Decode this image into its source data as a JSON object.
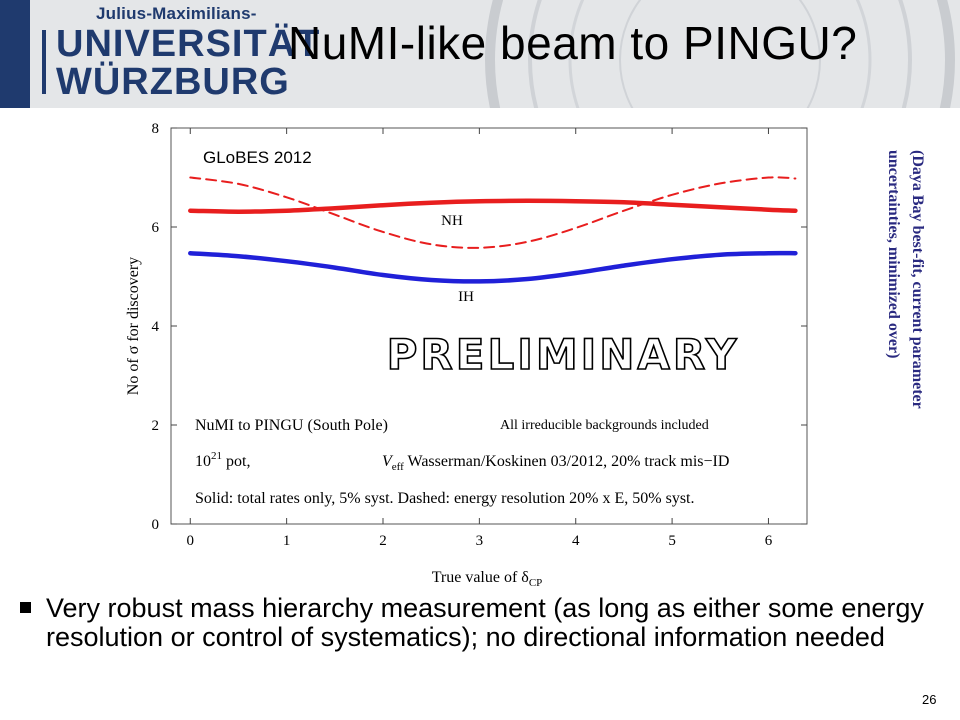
{
  "header": {
    "logo_line1": "Julius-Maximilians-",
    "logo_line2": "UNIVERSITÄT",
    "logo_line3": "WÜRZBURG"
  },
  "slide": {
    "title": "NuMI-like beam to PINGU?",
    "side_note": "(Daya Bay best-fit, current parameter\nuncertainties, minimized over)",
    "bullet": "Very robust mass hierarchy measurement (as long as either some energy resolution or control of systematics); no directional information needed",
    "page_number": "26"
  },
  "chart_data": {
    "type": "line",
    "xlabel": "True value of δ",
    "xlabel_sub": "CP",
    "ylabel": "No of σ for discovery",
    "xlim": [
      -0.2,
      6.4
    ],
    "ylim": [
      0,
      8
    ],
    "xticks": [
      "0",
      "1",
      "2",
      "3",
      "4",
      "5",
      "6"
    ],
    "yticks": [
      "0",
      "2",
      "4",
      "6",
      "8"
    ],
    "grid": false,
    "colors": {
      "NH": "#e81e1e",
      "IH": "#2020d8"
    },
    "annotations": {
      "globes": "GLoBES 2012",
      "nh_label": "NH",
      "ih_label": "IH",
      "watermark": "PRELIMINARY",
      "setup": "NuMI to PINGU (South Pole)",
      "backgrounds": "All irreducible backgrounds included",
      "pot_base": "10",
      "pot_exp": "21",
      "pot_rest": " pot,",
      "veff_v": "V",
      "veff_sub": "eff",
      "veff_rest": " Wasserman/Koskinen 03/2012, 20% track mis−ID",
      "legend_note": "Solid: total rates only, 5% syst. Dashed: energy resolution 20% x E, 50% syst."
    },
    "series": [
      {
        "name": "NH",
        "style": "solid",
        "x": [
          0,
          0.5,
          1.0,
          1.5,
          2.0,
          2.5,
          3.0,
          3.5,
          4.0,
          4.5,
          5.0,
          5.5,
          6.0,
          6.28
        ],
        "y": [
          6.33,
          6.31,
          6.33,
          6.38,
          6.44,
          6.49,
          6.52,
          6.53,
          6.52,
          6.5,
          6.45,
          6.4,
          6.35,
          6.33
        ]
      },
      {
        "name": "IH",
        "style": "solid",
        "x": [
          0,
          0.5,
          1.0,
          1.5,
          2.0,
          2.5,
          3.0,
          3.5,
          4.0,
          4.5,
          5.0,
          5.5,
          6.0,
          6.28
        ],
        "y": [
          5.47,
          5.41,
          5.31,
          5.18,
          5.03,
          4.93,
          4.9,
          4.95,
          5.07,
          5.22,
          5.35,
          5.44,
          5.47,
          5.47
        ]
      },
      {
        "name": "NH",
        "style": "dashed",
        "x": [
          0,
          0.5,
          1.0,
          1.5,
          2.0,
          2.5,
          3.0,
          3.5,
          4.0,
          4.5,
          5.0,
          5.5,
          6.0,
          6.28
        ],
        "y": [
          7.0,
          6.87,
          6.6,
          6.25,
          5.9,
          5.65,
          5.58,
          5.7,
          5.98,
          6.33,
          6.65,
          6.88,
          7.0,
          6.98
        ]
      }
    ]
  }
}
